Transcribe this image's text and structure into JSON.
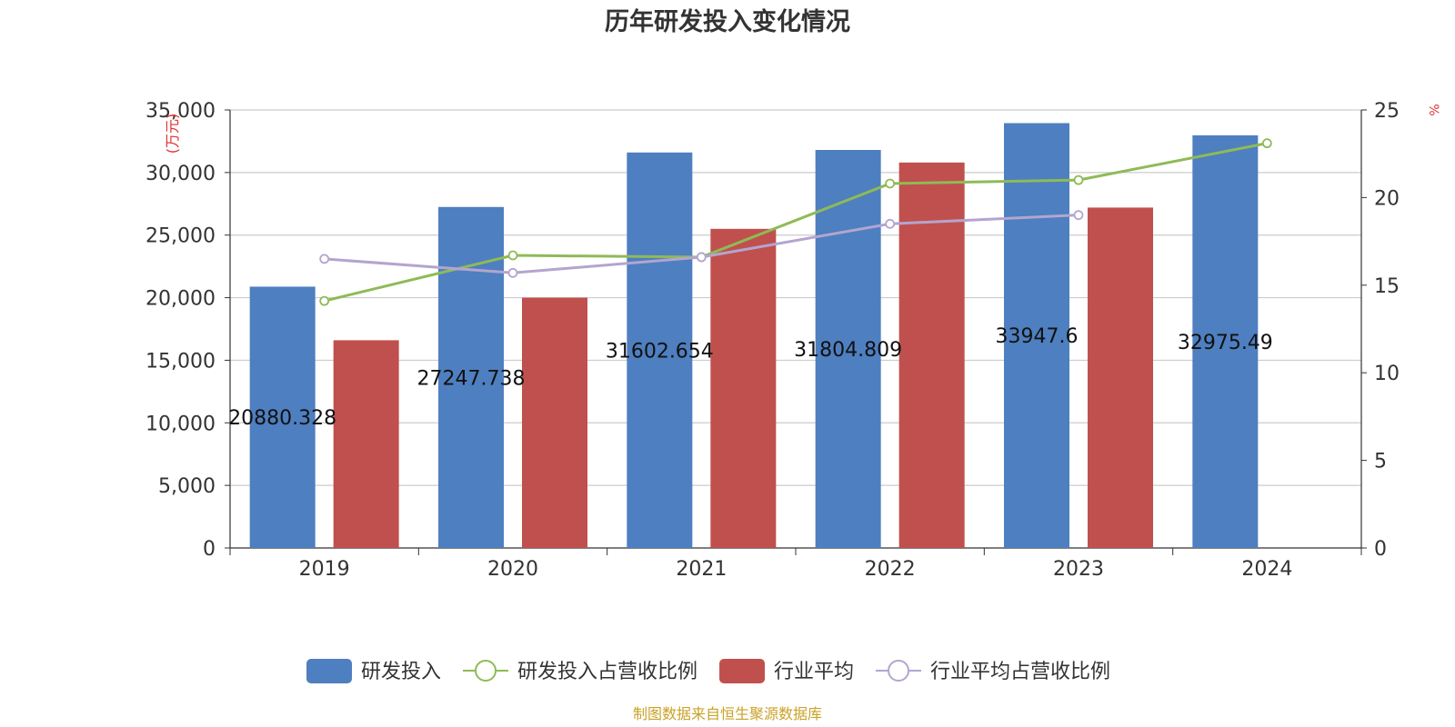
{
  "chart_data": {
    "type": "bar",
    "title": "历年研发投入变化情况",
    "categories": [
      "2019",
      "2020",
      "2021",
      "2022",
      "2023",
      "2024"
    ],
    "y_left": {
      "unit_label": "(万元)",
      "min": 0,
      "max": 35000,
      "ticks": [
        0,
        5000,
        10000,
        15000,
        20000,
        25000,
        30000,
        35000
      ],
      "tick_labels": [
        "0",
        "5,000",
        "10,000",
        "15,000",
        "20,000",
        "25,000",
        "30,000",
        "35,000"
      ]
    },
    "y_right": {
      "unit_label": "%",
      "min": 0,
      "max": 25,
      "ticks": [
        0,
        5,
        10,
        15,
        20,
        25
      ],
      "tick_labels": [
        "0",
        "5",
        "10",
        "15",
        "20",
        "25"
      ]
    },
    "series": [
      {
        "name": "研发投入",
        "kind": "bar",
        "axis": "left",
        "color": "#4e7fc0",
        "values": [
          20880.328,
          27247.738,
          31602.654,
          31804.809,
          33947.6,
          32975.49
        ],
        "labels": [
          "20880.328",
          "27247.738",
          "31602.654",
          "31804.809",
          "33947.6",
          "32975.49"
        ]
      },
      {
        "name": "研发投入占营收比例",
        "kind": "line",
        "axis": "right",
        "color": "#8fba57",
        "values": [
          14.1,
          16.7,
          16.6,
          20.8,
          21.0,
          23.1
        ]
      },
      {
        "name": "行业平均",
        "kind": "bar",
        "axis": "left",
        "color": "#c0504d",
        "values": [
          16600,
          20000,
          25500,
          30800,
          27200,
          null
        ]
      },
      {
        "name": "行业平均占营收比例",
        "kind": "line",
        "axis": "right",
        "color": "#b3a5cf",
        "values": [
          16.5,
          15.7,
          16.6,
          18.5,
          19.0,
          null
        ]
      }
    ],
    "legend_position": "bottom",
    "grid": true,
    "source": "制图数据来自恒生聚源数据库"
  }
}
